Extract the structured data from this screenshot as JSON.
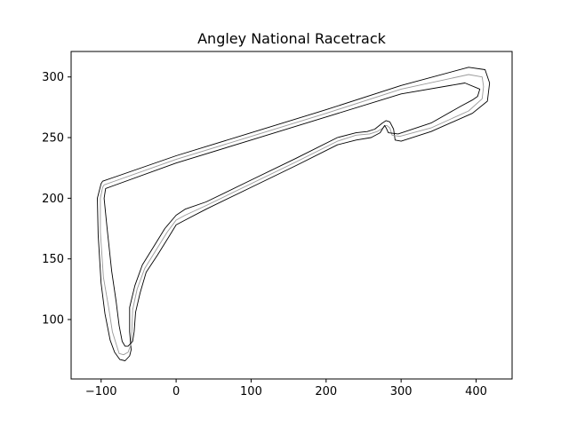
{
  "chart_data": {
    "type": "line",
    "title": "Angley National Racetrack",
    "xlabel": "",
    "ylabel": "",
    "xlim": [
      -140,
      448
    ],
    "ylim": [
      51,
      321
    ],
    "xticks": [
      -100,
      0,
      100,
      200,
      300,
      400
    ],
    "xtick_labels": [
      "−100",
      "0",
      "100",
      "200",
      "300",
      "400"
    ],
    "yticks": [
      100,
      150,
      200,
      250,
      300
    ],
    "ytick_labels": [
      "100",
      "150",
      "200",
      "250",
      "300"
    ],
    "grid": false,
    "series": [
      {
        "role": "outer-edge",
        "color": "#000000",
        "x": [
          -98,
          0,
          100,
          200,
          300,
          390,
          412,
          418,
          415,
          395,
          340,
          300,
          292,
          290,
          285,
          280,
          275,
          265,
          255,
          240,
          215,
          160,
          100,
          40,
          12,
          0,
          -15,
          -30,
          -45,
          -55,
          -62,
          -62,
          -60,
          -62,
          -68,
          -75,
          -82,
          -88,
          -95,
          -100,
          -104,
          -105,
          -100,
          -98
        ],
        "y": [
          214,
          235,
          254,
          273,
          293,
          308,
          306,
          295,
          280,
          270,
          255,
          247,
          248,
          257,
          263,
          264,
          262,
          257,
          255,
          254,
          250,
          233,
          215,
          197,
          191,
          186,
          175,
          160,
          145,
          128,
          110,
          90,
          75,
          70,
          66,
          67,
          73,
          83,
          105,
          130,
          170,
          200,
          212,
          214
        ]
      },
      {
        "role": "center-line",
        "color": "#999999",
        "x": [
          -96,
          0,
          100,
          200,
          300,
          390,
          408,
          410,
          408,
          390,
          340,
          298,
          288,
          285,
          281,
          279,
          276,
          268,
          258,
          240,
          215,
          160,
          100,
          40,
          12,
          0,
          -12,
          -27,
          -42,
          -52,
          -58,
          -59,
          -60,
          -64,
          -70,
          -76,
          -80,
          -85,
          -90,
          -97,
          -101,
          -101,
          -98,
          -96
        ],
        "y": [
          211,
          232,
          251,
          270,
          290,
          302,
          300,
          292,
          282,
          272,
          258,
          251,
          252,
          258,
          260,
          260,
          258,
          255,
          253,
          252,
          247,
          230,
          212,
          194,
          186,
          182,
          172,
          157,
          142,
          125,
          108,
          90,
          80,
          73,
          71,
          72,
          80,
          90,
          110,
          135,
          172,
          200,
          209,
          211
        ]
      },
      {
        "role": "inner-edge",
        "color": "#000000",
        "x": [
          -94,
          0,
          100,
          200,
          300,
          385,
          405,
          402,
          395,
          380,
          340,
          296,
          283,
          280,
          278,
          276,
          272,
          260,
          240,
          215,
          160,
          100,
          40,
          12,
          0,
          -10,
          -25,
          -40,
          -48,
          -54,
          -56,
          -58,
          -64,
          -68,
          -72,
          -76,
          -80,
          -86,
          -92,
          -96,
          -94
        ],
        "y": [
          208,
          229,
          248,
          267,
          286,
          295,
          290,
          284,
          281,
          276,
          262,
          253,
          254,
          258,
          260,
          258,
          254,
          250,
          248,
          244,
          227,
          209,
          191,
          182,
          178,
          168,
          153,
          139,
          122,
          106,
          90,
          82,
          78,
          78,
          82,
          95,
          115,
          140,
          175,
          200,
          208
        ]
      }
    ]
  }
}
